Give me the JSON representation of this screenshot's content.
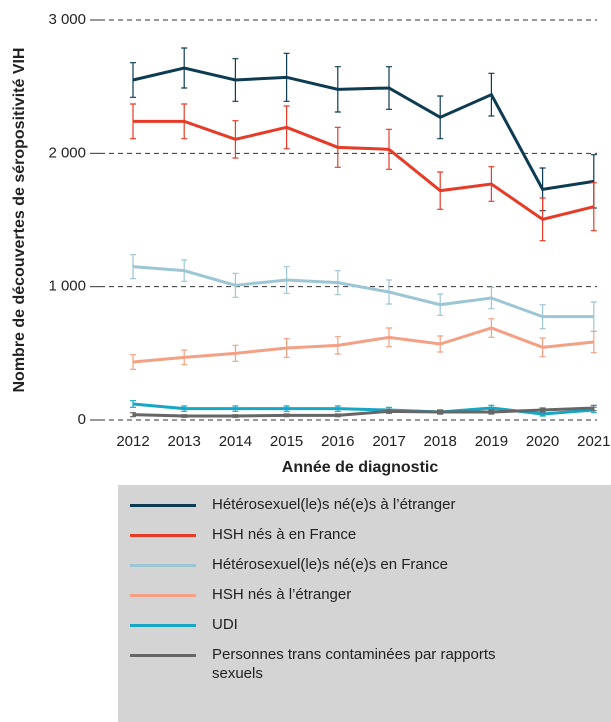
{
  "chart_data": {
    "type": "line",
    "ylabel": "Nombre de découvertes de séropositivité VIH",
    "xlabel": "Année de diagnostic",
    "categories": [
      "2012",
      "2013",
      "2014",
      "2015",
      "2016",
      "2017",
      "2018",
      "2019",
      "2020",
      "2021"
    ],
    "ylim": [
      0,
      3000
    ],
    "yticks": [
      {
        "value": 0,
        "label": "0"
      },
      {
        "value": 1000,
        "label": "1 000"
      },
      {
        "value": 2000,
        "label": "2 000"
      },
      {
        "value": 3000,
        "label": "3 000"
      }
    ],
    "grid": true,
    "series": [
      {
        "name": "Hétérosexuel(le)s né(e)s à l’étranger",
        "color": "#0d3b52",
        "values": [
          2550,
          2640,
          2550,
          2570,
          2480,
          2490,
          2270,
          2440,
          1730,
          1790
        ],
        "errors": [
          130,
          150,
          160,
          180,
          170,
          160,
          160,
          160,
          160,
          200
        ]
      },
      {
        "name": "HSH nés à en France",
        "color": "#e63b26",
        "values": [
          2240,
          2240,
          2105,
          2195,
          2045,
          2030,
          1720,
          1770,
          1505,
          1600
        ],
        "errors": [
          130,
          130,
          140,
          160,
          150,
          150,
          140,
          130,
          160,
          180
        ]
      },
      {
        "name": "Hétérosexuel(le)s né(e)s en France",
        "color": "#9cc6d3",
        "values": [
          1150,
          1120,
          1010,
          1050,
          1030,
          960,
          865,
          915,
          775,
          775
        ],
        "errors": [
          90,
          80,
          90,
          100,
          90,
          90,
          80,
          80,
          90,
          110
        ]
      },
      {
        "name": "HSH nés à l’étranger",
        "color": "#f3a084",
        "values": [
          435,
          470,
          500,
          540,
          560,
          620,
          570,
          690,
          545,
          585
        ],
        "errors": [
          55,
          55,
          60,
          70,
          65,
          70,
          60,
          70,
          70,
          80
        ]
      },
      {
        "name": "UDI",
        "color": "#16a6c6",
        "values": [
          120,
          85,
          85,
          85,
          85,
          75,
          60,
          90,
          45,
          75
        ],
        "errors": [
          25,
          20,
          20,
          20,
          20,
          20,
          15,
          20,
          15,
          20
        ]
      },
      {
        "name": "Personnes trans contaminées par rapports sexuels",
        "color": "#666666",
        "values": [
          40,
          30,
          30,
          35,
          35,
          65,
          60,
          60,
          75,
          90
        ],
        "errors": [
          15,
          10,
          10,
          10,
          10,
          15,
          15,
          15,
          15,
          20
        ]
      }
    ]
  }
}
